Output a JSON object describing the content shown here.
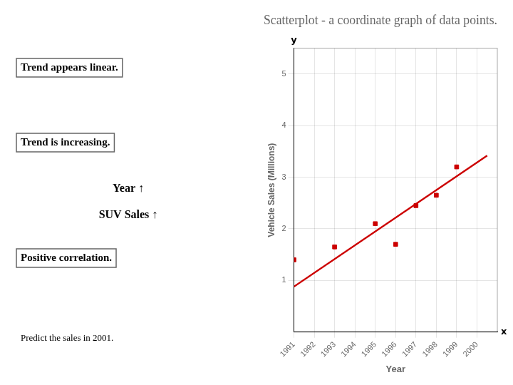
{
  "chart_data": {
    "type": "scatter",
    "title": "Scatterplot - a coordinate graph of data points.",
    "xlabel": "Year",
    "ylabel": "Vehicle Sales (Millions)",
    "xlim": [
      1991,
      2001
    ],
    "ylim": [
      0,
      5.5
    ],
    "xticks": [
      1991,
      1992,
      1993,
      1994,
      1995,
      1996,
      1997,
      1998,
      1999,
      2000
    ],
    "yticks": [
      1,
      2,
      3,
      4,
      5
    ],
    "grid": true,
    "series": [
      {
        "type": "scatter",
        "color": "#cc0000",
        "marker": "square",
        "x": [
          1991,
          1993,
          1995,
          1996,
          1997,
          1998,
          1999
        ],
        "values": [
          1.4,
          1.65,
          2.1,
          1.7,
          2.45,
          2.65,
          3.2
        ]
      },
      {
        "type": "line",
        "color": "#cc0000",
        "line_style": "solid",
        "x": [
          1991,
          2000.5
        ],
        "values": [
          0.88,
          3.42
        ]
      }
    ],
    "annotations": [
      "Trend appears linear.",
      "Trend is increasing.",
      "Year ↑",
      "SUV Sales ↑",
      "Positive correlation.",
      "Predict the sales in 2001.",
      "x",
      "y"
    ]
  }
}
